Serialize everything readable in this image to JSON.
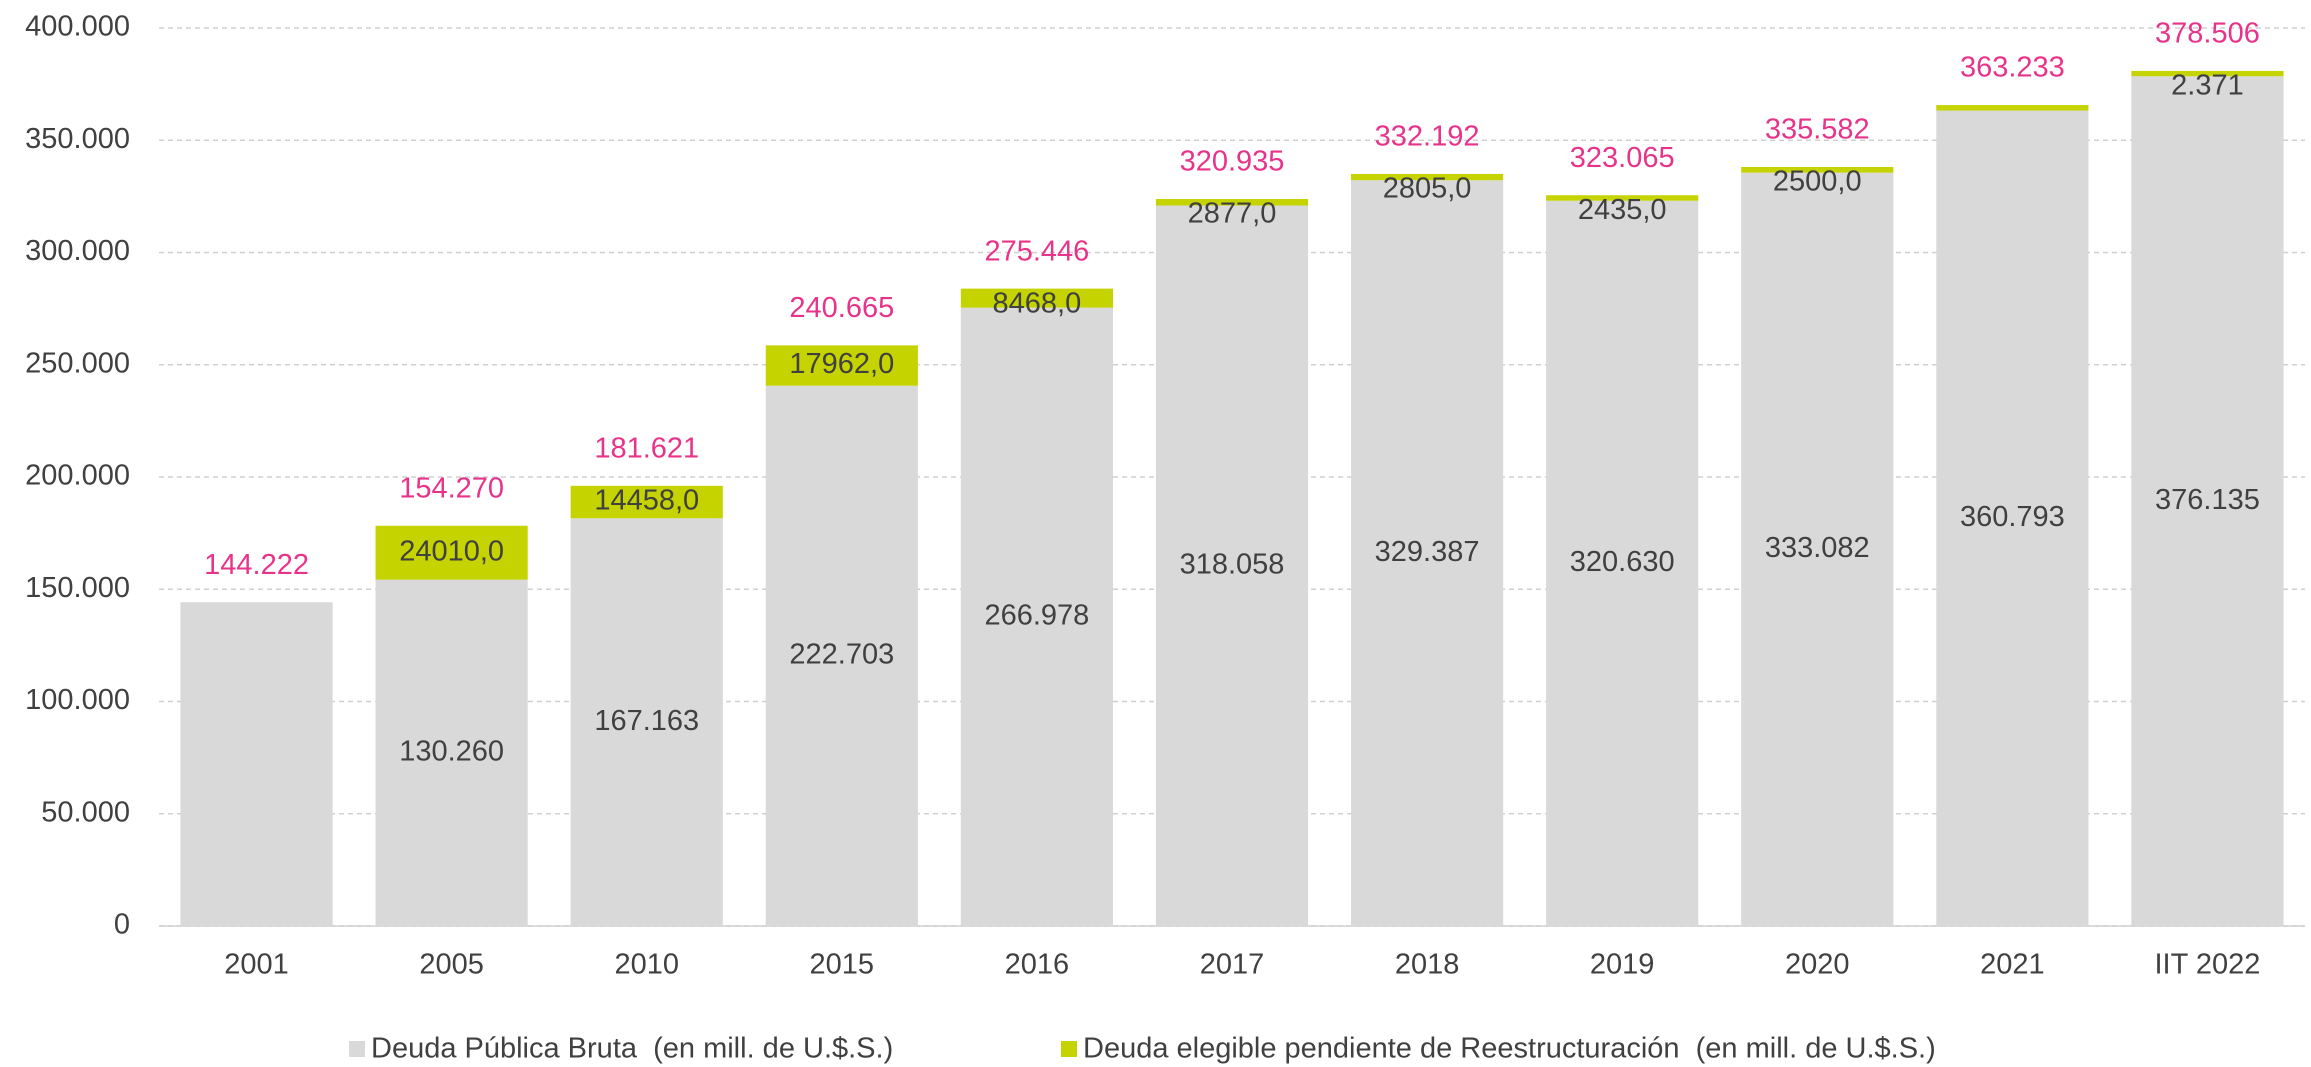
{
  "chart_data": {
    "type": "stacked_bar",
    "categories": [
      "2001",
      "2005",
      "2010",
      "2015",
      "2016",
      "2017",
      "2018",
      "2019",
      "2020",
      "2021",
      "IIT 2022"
    ],
    "series": [
      {
        "name": "Deuda Pública Bruta  (en mill. de U.$.S.)",
        "color": "#d9d9d9",
        "values": [
          144222,
          154270,
          181621,
          240665,
          275446,
          320935,
          332192,
          323065,
          335582,
          363233,
          378506
        ],
        "value_labels": [
          "144.222",
          "154.270",
          "181.621",
          "240.665",
          "275.446",
          "320.935",
          "332.192",
          "323.065",
          "335.582",
          "363.233",
          "378.506"
        ],
        "label_color": "#e8338a"
      },
      {
        "name": "Deuda elegible pendiente de Reestructuración  (en mill. de U.$.S.)",
        "color": "#c5d300",
        "values": [
          null,
          24010,
          14458,
          17962,
          8468,
          2877,
          2805,
          2435,
          2500,
          2440,
          2371
        ],
        "value_labels": [
          null,
          "24010,0",
          "14458,0",
          "17962,0",
          "8468,0",
          "2877,0",
          "2805,0",
          "2435,0",
          "2500,0",
          null,
          "2.371"
        ]
      }
    ],
    "bar_annotations": [
      null,
      "130.260",
      "167.163",
      "222.703",
      "266.978",
      "318.058",
      "329.387",
      "320.630",
      "333.082",
      "360.793",
      "376.135"
    ],
    "ylim": [
      0,
      400000
    ],
    "yticks": [
      {
        "value": 0,
        "label": "0"
      },
      {
        "value": 50000,
        "label": "50.000"
      },
      {
        "value": 100000,
        "label": "100.000"
      },
      {
        "value": 150000,
        "label": "150.000"
      },
      {
        "value": 200000,
        "label": "200.000"
      },
      {
        "value": 250000,
        "label": "250.000"
      },
      {
        "value": 300000,
        "label": "300.000"
      },
      {
        "value": 350000,
        "label": "350.000"
      },
      {
        "value": 400000,
        "label": "400.000"
      }
    ],
    "grid": true,
    "legend": "bottom"
  }
}
